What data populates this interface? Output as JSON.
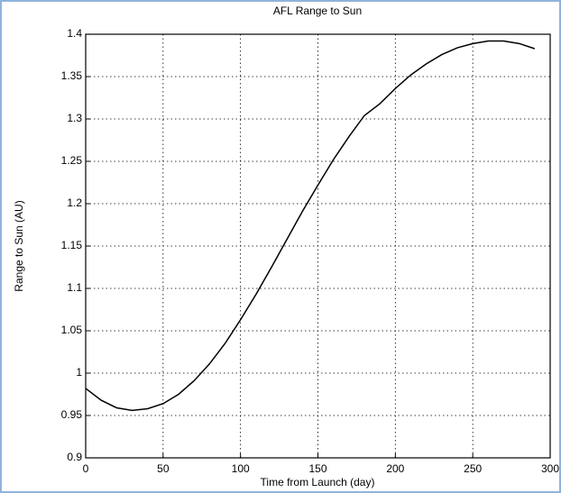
{
  "chart_data": {
    "type": "line",
    "title": "AFL Range to Sun",
    "x_label": "Time from Launch (day)",
    "y_label": "Range to Sun (AU)",
    "x": [
      0,
      10,
      20,
      30,
      40,
      50,
      60,
      70,
      80,
      90,
      100,
      110,
      120,
      130,
      140,
      150,
      160,
      170,
      180,
      190,
      200,
      210,
      220,
      230,
      240,
      250,
      260,
      270,
      280,
      290
    ],
    "series": [
      {
        "name": "Range to Sun",
        "color": "#000000",
        "values": [
          0.982,
          0.968,
          0.959,
          0.956,
          0.958,
          0.964,
          0.975,
          0.991,
          1.011,
          1.035,
          1.063,
          1.093,
          1.125,
          1.158,
          1.191,
          1.222,
          1.252,
          1.279,
          1.304,
          1.318,
          1.336,
          1.352,
          1.365,
          1.376,
          1.384,
          1.389,
          1.392,
          1.392,
          1.389,
          1.383
        ]
      }
    ],
    "xlim": [
      0,
      300
    ],
    "xticks": [
      0,
      50,
      100,
      150,
      200,
      250,
      300
    ],
    "ylim": [
      0.9,
      1.4
    ],
    "yticks": [
      0.9,
      0.95,
      1,
      1.05,
      1.1,
      1.15,
      1.2,
      1.25,
      1.3,
      1.35,
      1.4
    ],
    "grid": true
  }
}
